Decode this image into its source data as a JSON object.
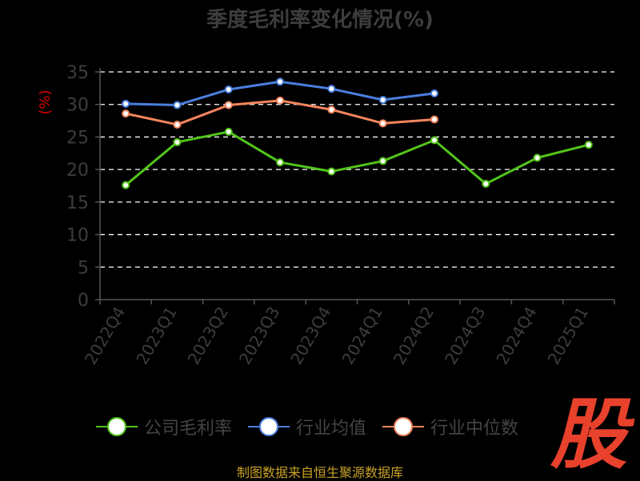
{
  "chart_data": {
    "type": "line",
    "title": "季度毛利率变化情况(%)",
    "ylabel": "(%)",
    "xlabel": "",
    "ylim": [
      0,
      35
    ],
    "yticks": [
      0,
      5,
      10,
      15,
      20,
      25,
      30,
      35
    ],
    "grid": true,
    "categories": [
      "2022Q4",
      "2023Q1",
      "2023Q2",
      "2023Q3",
      "2023Q4",
      "2024Q1",
      "2024Q2",
      "2024Q3",
      "2024Q4",
      "2025Q1"
    ],
    "series": [
      {
        "name": "公司毛利率",
        "color": "#52c41a",
        "values": [
          17.6,
          24.2,
          25.8,
          21.1,
          19.7,
          21.3,
          24.5,
          17.8,
          21.8,
          23.8
        ]
      },
      {
        "name": "行业均值",
        "color": "#4a7fe0",
        "values": [
          30.1,
          29.9,
          32.3,
          33.5,
          32.4,
          30.7,
          31.7,
          null,
          null,
          null
        ]
      },
      {
        "name": "行业中位数",
        "color": "#f5855e",
        "values": [
          28.6,
          26.9,
          29.9,
          30.6,
          29.2,
          27.1,
          27.7,
          null,
          null,
          null
        ]
      }
    ],
    "legend_position": "bottom"
  },
  "source_note": "制图数据来自恒生聚源数据库",
  "logo_text": "股"
}
